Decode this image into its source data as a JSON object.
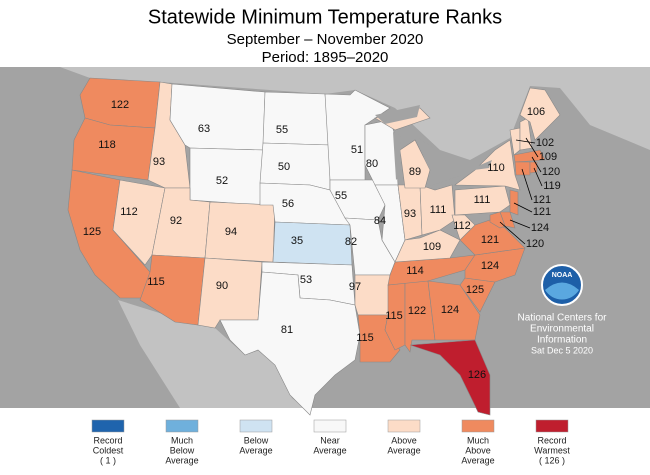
{
  "chart_data": {
    "type": "choropleth",
    "title": "Statewide Minimum Temperature Ranks",
    "subtitle": "September – November 2020",
    "period": "Period: 1895–2020",
    "values": [
      122,
      118,
      125,
      112,
      93,
      63,
      52,
      92,
      94,
      115,
      90,
      55,
      50,
      56,
      35,
      53,
      81,
      51,
      55,
      80,
      82,
      84,
      97,
      115,
      115,
      122,
      114,
      109,
      93,
      111,
      89,
      124,
      126,
      125,
      124,
      121,
      112,
      111,
      110,
      121,
      124,
      120,
      102,
      109,
      106,
      120,
      121,
      119
    ],
    "legend": [
      {
        "name": [
          "Record",
          "Coldest"
        ],
        "color": "#1f64ad",
        "rank": {
          "value": 1,
          "label": "( 1 )"
        }
      },
      {
        "name": [
          "Much",
          "Below",
          "Average"
        ],
        "color": "#6fb0dc"
      },
      {
        "name": [
          "Below",
          "Average"
        ],
        "color": "#cfe3f2"
      },
      {
        "name": [
          "Near",
          "Average"
        ],
        "color": "#f8f8f8"
      },
      {
        "name": [
          "Above",
          "Average"
        ],
        "color": "#fcdcc7"
      },
      {
        "name": [
          "Much",
          "Above",
          "Average"
        ],
        "color": "#ef8a5f"
      },
      {
        "name": [
          "Record",
          "Warmest"
        ],
        "color": "#bf1e2e",
        "rank": {
          "value": 126,
          "label": "( 126 )"
        }
      }
    ],
    "logo": "NOAA",
    "credit": [
      "National Centers for",
      "Environmental",
      "Information"
    ],
    "date": "Sat Dec  5 2020"
  }
}
